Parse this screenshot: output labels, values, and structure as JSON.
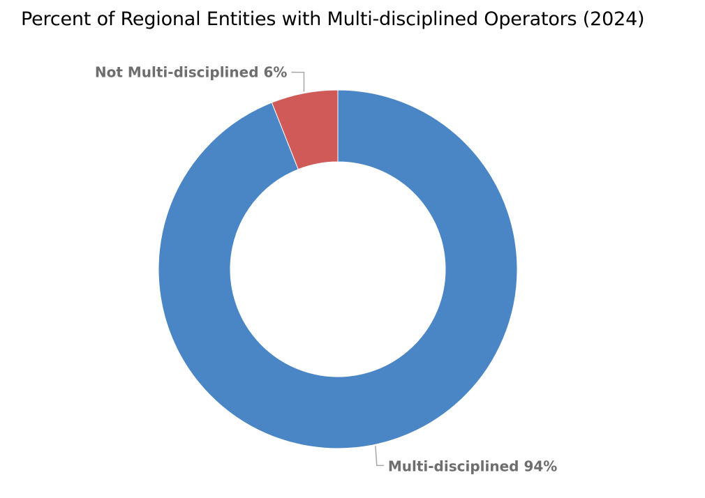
{
  "chart_data": {
    "type": "pie",
    "variant": "donut",
    "title": "Percent of Regional Entities with Multi-disciplined Operators (2024)",
    "series": [
      {
        "slices": [
          {
            "category": "Multi-disciplined",
            "value": 94,
            "label": "Multi-disciplined 94%",
            "color": "#4a86c5"
          },
          {
            "category": "Not Multi-disciplined",
            "value": 6,
            "label": "Not Multi-disciplined 6%",
            "color": "#d05a57"
          }
        ]
      }
    ],
    "start_angle": "12 o'clock",
    "direction": "clockwise",
    "legend": "none",
    "data_labels": "outside with leader lines"
  }
}
